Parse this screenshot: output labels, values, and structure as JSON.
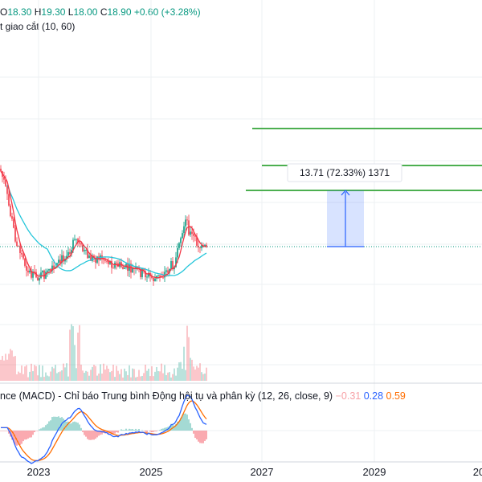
{
  "legend": {
    "ohlc": [
      {
        "label": "O",
        "value": "18.30"
      },
      {
        "label": "H",
        "value": "19.30"
      },
      {
        "label": "L",
        "value": "18.00"
      },
      {
        "label": "C",
        "value": "18.90"
      }
    ],
    "change": "+0.60 (+3.28%)",
    "ma_label": "t giao cắt (10, 60)"
  },
  "measure_label": "13.71 (72.33%) 1371",
  "macd": {
    "title": "nce (MACD) - Chỉ báo Trung bình Động hội tụ và phân kỳ (12, 26, close, 9)",
    "histogram": "−0.31",
    "macd": "0.28",
    "signal": "0.59"
  },
  "x_axis": [
    "2023",
    "2025",
    "2027",
    "2029",
    "20"
  ],
  "colors": {
    "up": "#089981",
    "down": "#f23645",
    "ma_fast": "#f23645",
    "ma_slow": "#26c6da",
    "target_lines": "#4caf50",
    "measure": "#2962ff",
    "macd_line": "#2962ff",
    "signal_line": "#ff6d00"
  }
}
